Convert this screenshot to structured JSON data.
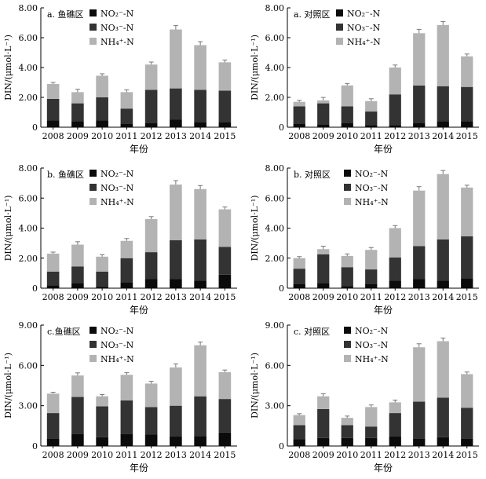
{
  "legend_labels": {
    "no2": "NO₂⁻-N",
    "no3": "NO₃⁻-N",
    "nh4": "NH₄⁺-N"
  },
  "colors": {
    "no2": "#0b0b0b",
    "no3": "#333333",
    "nh4": "#b3b3b3",
    "axis": "#000000"
  },
  "chart_data": [
    {
      "type": "bar",
      "stacked": true,
      "title": "a. 鱼礁区",
      "xlabel": "年份",
      "ylabel": "DIN/(μmol·L⁻¹)",
      "categories": [
        "2008",
        "2009",
        "2010",
        "2011",
        "2012",
        "2013",
        "2014",
        "2015"
      ],
      "ylim": [
        0,
        8
      ],
      "yticks": [
        "0",
        "2.00",
        "4.00",
        "6.00",
        "8.00"
      ],
      "legend": "top-left",
      "series": [
        {
          "name": "NO₂⁻-N",
          "values": [
            0.45,
            0.4,
            0.45,
            0.25,
            0.3,
            0.5,
            0.35,
            0.35
          ]
        },
        {
          "name": "NO₃⁻-N",
          "values": [
            1.45,
            1.2,
            1.55,
            1.0,
            2.2,
            2.1,
            2.15,
            2.1
          ]
        },
        {
          "name": "NH₄⁺-N",
          "values": [
            1.0,
            0.75,
            1.45,
            1.1,
            1.7,
            3.95,
            3.0,
            1.9
          ]
        }
      ]
    },
    {
      "type": "bar",
      "stacked": true,
      "title": "a. 对照区",
      "xlabel": "年份",
      "ylabel": "DIN/(μmol·L⁻¹)",
      "categories": [
        "2008",
        "2009",
        "2010",
        "2011",
        "2012",
        "2013",
        "2014",
        "2015"
      ],
      "ylim": [
        0,
        8
      ],
      "yticks": [
        "0",
        "2.00",
        "4.00",
        "6.00",
        "8.00"
      ],
      "legend": "top-left",
      "series": [
        {
          "name": "NO₂⁻-N",
          "values": [
            0.25,
            0.2,
            0.3,
            0.15,
            0.15,
            0.3,
            0.4,
            0.4
          ]
        },
        {
          "name": "NO₃⁻-N",
          "values": [
            1.15,
            1.4,
            1.1,
            0.9,
            2.05,
            2.5,
            2.35,
            2.3
          ]
        },
        {
          "name": "NH₄⁺-N",
          "values": [
            0.3,
            0.2,
            1.4,
            0.7,
            1.8,
            3.5,
            4.1,
            2.05
          ]
        }
      ]
    },
    {
      "type": "bar",
      "stacked": true,
      "title": "b. 鱼礁区",
      "xlabel": "年份",
      "ylabel": "DIN/(μmol·L⁻¹)",
      "categories": [
        "2008",
        "2009",
        "2010",
        "2011",
        "2012",
        "2013",
        "2014",
        "2015"
      ],
      "ylim": [
        0,
        8
      ],
      "yticks": [
        "0",
        "2.00",
        "4.00",
        "6.00",
        "8.00"
      ],
      "legend": "top-left",
      "series": [
        {
          "name": "NO₂⁻-N",
          "values": [
            0.2,
            0.35,
            0.1,
            0.4,
            0.6,
            0.6,
            0.5,
            0.9
          ]
        },
        {
          "name": "NO₃⁻-N",
          "values": [
            0.9,
            1.1,
            1.0,
            1.6,
            1.8,
            2.6,
            2.75,
            1.85
          ]
        },
        {
          "name": "NH₄⁺-N",
          "values": [
            1.2,
            1.45,
            1.0,
            1.15,
            2.2,
            3.7,
            3.35,
            2.5
          ]
        }
      ]
    },
    {
      "type": "bar",
      "stacked": true,
      "title": "b. 对照区",
      "xlabel": "年份",
      "ylabel": "DIN/(μmol·L⁻¹)",
      "categories": [
        "2008",
        "2009",
        "2010",
        "2011",
        "2012",
        "2013",
        "2014",
        "2015"
      ],
      "ylim": [
        0,
        8
      ],
      "yticks": [
        "0",
        "2.00",
        "4.00",
        "6.00",
        "8.00"
      ],
      "legend": "top-right",
      "series": [
        {
          "name": "NO₂⁻-N",
          "values": [
            0.3,
            0.35,
            0.15,
            0.3,
            0.5,
            0.6,
            0.5,
            0.65
          ]
        },
        {
          "name": "NO₃⁻-N",
          "values": [
            1.0,
            1.9,
            1.25,
            0.95,
            1.55,
            2.2,
            2.75,
            2.8
          ]
        },
        {
          "name": "NH₄⁺-N",
          "values": [
            0.7,
            0.35,
            0.75,
            1.3,
            1.95,
            3.7,
            4.35,
            3.25
          ]
        }
      ]
    },
    {
      "type": "bar",
      "stacked": true,
      "title": "c.鱼礁区",
      "xlabel": "年份",
      "ylabel": "DIN/(μmol·L⁻¹)",
      "categories": [
        "2008",
        "2009",
        "2010",
        "2011",
        "2012",
        "2013",
        "2014",
        "2015"
      ],
      "ylim": [
        0,
        9
      ],
      "yticks": [
        "0",
        "3.00",
        "6.00",
        "9.00"
      ],
      "legend": "top-left",
      "series": [
        {
          "name": "NO₂⁻-N",
          "values": [
            0.55,
            0.9,
            0.65,
            0.9,
            0.85,
            0.7,
            0.75,
            1.0
          ]
        },
        {
          "name": "NO₃⁻-N",
          "values": [
            1.9,
            2.75,
            2.3,
            2.5,
            2.05,
            2.3,
            2.95,
            2.5
          ]
        },
        {
          "name": "NH₄⁺-N",
          "values": [
            1.45,
            1.6,
            0.75,
            1.9,
            1.75,
            2.85,
            3.8,
            2.0
          ]
        }
      ]
    },
    {
      "type": "bar",
      "stacked": true,
      "title": "c. 对照区",
      "xlabel": "年份",
      "ylabel": "DIN/(μmol·L⁻¹)",
      "categories": [
        "2008",
        "2009",
        "2010",
        "2011",
        "2012",
        "2013",
        "2014",
        "2015"
      ],
      "ylim": [
        0,
        9
      ],
      "yticks": [
        "0",
        "3.00",
        "6.00",
        "9.00"
      ],
      "legend": "top-right",
      "series": [
        {
          "name": "NO₂⁻-N",
          "values": [
            0.5,
            0.6,
            0.6,
            0.6,
            0.7,
            0.55,
            0.65,
            0.55
          ]
        },
        {
          "name": "NO₃⁻-N",
          "values": [
            1.05,
            2.15,
            0.95,
            0.85,
            1.75,
            2.75,
            2.95,
            2.3
          ]
        },
        {
          "name": "NH₄⁺-N",
          "values": [
            0.75,
            0.95,
            0.55,
            1.45,
            0.8,
            4.05,
            4.2,
            2.5
          ]
        }
      ]
    }
  ]
}
